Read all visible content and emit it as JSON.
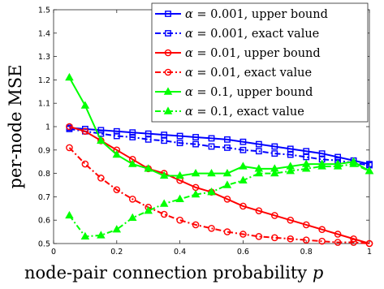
{
  "chart_data": {
    "type": "line",
    "xlabel": "node-pair connection probability",
    "xlabel_symbol": "p",
    "ylabel": "per-node MSE",
    "xlim": [
      0,
      1
    ],
    "ylim": [
      0.5,
      1.5
    ],
    "xticks": [
      0,
      0.2,
      0.4,
      0.6,
      0.8,
      1
    ],
    "xtick_labels": [
      "0",
      "0.2",
      "0.4",
      "0.6",
      "0.8",
      "1"
    ],
    "yticks": [
      0.5,
      0.6,
      0.7,
      0.8,
      0.9,
      1,
      1.1,
      1.2,
      1.3,
      1.4,
      1.5
    ],
    "ytick_labels": [
      "0.5",
      "0.6",
      "0.7",
      "0.8",
      "0.9",
      "1",
      "1.1",
      "1.2",
      "1.3",
      "1.4",
      "1.5"
    ],
    "grid": false,
    "legend_position": "top-right",
    "x": [
      0.05,
      0.1,
      0.15,
      0.2,
      0.25,
      0.3,
      0.35,
      0.4,
      0.45,
      0.5,
      0.55,
      0.6,
      0.65,
      0.7,
      0.75,
      0.8,
      0.85,
      0.9,
      0.95,
      1.0
    ],
    "series": [
      {
        "name": "α = 0.001, upper bound",
        "alpha": "α",
        "label_rest": " = 0.001, upper bound",
        "color": "#0000ff",
        "marker": "square",
        "linestyle": "solid",
        "values": [
          0.995,
          0.99,
          0.985,
          0.98,
          0.975,
          0.97,
          0.965,
          0.96,
          0.955,
          0.95,
          0.945,
          0.935,
          0.925,
          0.915,
          0.905,
          0.895,
          0.885,
          0.87,
          0.855,
          0.84
        ]
      },
      {
        "name": "α = 0.001, exact value",
        "alpha": "α",
        "label_rest": " = 0.001, exact value",
        "color": "#0000ff",
        "marker": "square",
        "linestyle": "dashdot",
        "values": [
          0.99,
          0.98,
          0.97,
          0.96,
          0.955,
          0.945,
          0.94,
          0.93,
          0.925,
          0.915,
          0.91,
          0.9,
          0.895,
          0.885,
          0.88,
          0.87,
          0.86,
          0.855,
          0.845,
          0.835
        ]
      },
      {
        "name": "α = 0.01, upper bound",
        "alpha": "α",
        "label_rest": " = 0.01, upper bound",
        "color": "#ff0000",
        "marker": "circle",
        "linestyle": "solid",
        "values": [
          1.0,
          0.98,
          0.94,
          0.9,
          0.86,
          0.82,
          0.8,
          0.77,
          0.74,
          0.72,
          0.69,
          0.66,
          0.64,
          0.62,
          0.6,
          0.58,
          0.56,
          0.54,
          0.52,
          0.5
        ]
      },
      {
        "name": "α = 0.01, exact value",
        "alpha": "α",
        "label_rest": " = 0.01, exact value",
        "color": "#ff0000",
        "marker": "circle",
        "linestyle": "dashdot",
        "values": [
          0.91,
          0.84,
          0.78,
          0.73,
          0.69,
          0.655,
          0.625,
          0.6,
          0.58,
          0.565,
          0.55,
          0.54,
          0.53,
          0.525,
          0.52,
          0.515,
          0.51,
          0.505,
          0.505,
          0.5
        ]
      },
      {
        "name": "α = 0.1, upper bound",
        "alpha": "α",
        "label_rest": " = 0.1, upper bound",
        "color": "#00ff00",
        "marker": "triangle",
        "linestyle": "solid",
        "values": [
          1.21,
          1.09,
          0.94,
          0.88,
          0.84,
          0.82,
          0.79,
          0.79,
          0.8,
          0.8,
          0.8,
          0.83,
          0.82,
          0.82,
          0.83,
          0.84,
          0.84,
          0.84,
          0.85,
          0.81
        ]
      },
      {
        "name": "α = 0.1, exact value",
        "alpha": "α",
        "label_rest": " = 0.1, exact value",
        "color": "#00ff00",
        "marker": "triangle",
        "linestyle": "dashdot",
        "values": [
          0.62,
          0.53,
          0.535,
          0.56,
          0.61,
          0.64,
          0.67,
          0.69,
          0.71,
          0.72,
          0.75,
          0.77,
          0.8,
          0.8,
          0.81,
          0.82,
          0.83,
          0.83,
          0.84,
          0.81
        ]
      }
    ]
  }
}
